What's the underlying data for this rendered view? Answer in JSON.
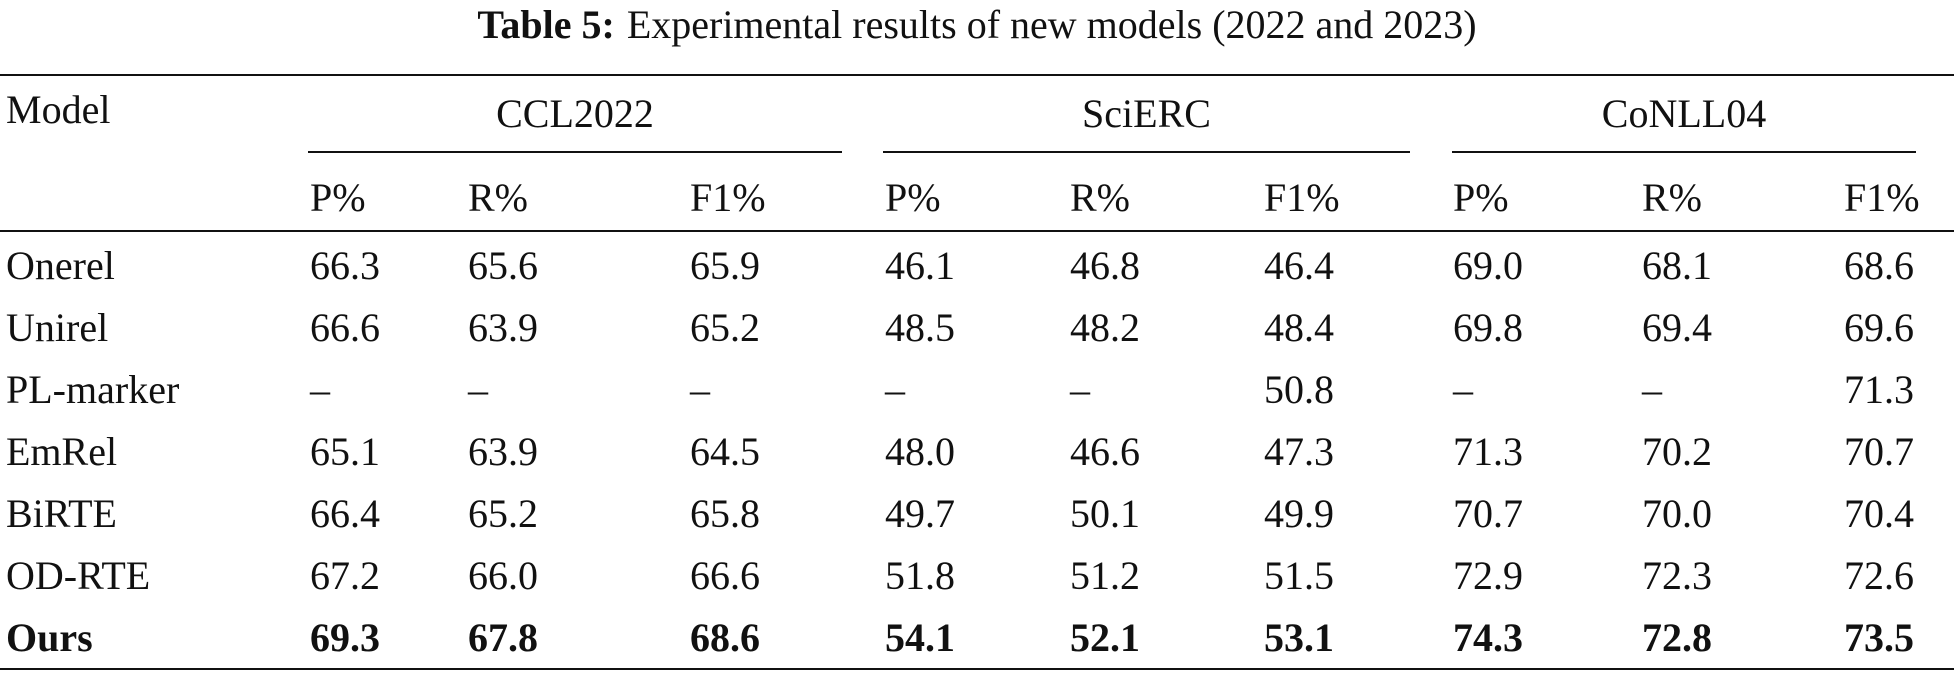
{
  "caption": {
    "label": "Table 5:",
    "text": "Experimental results of new models (2022 and 2023)"
  },
  "table": {
    "model_header": "Model",
    "groups": [
      {
        "name": "CCL2022",
        "metrics": [
          "P%",
          "R%",
          "F1%"
        ]
      },
      {
        "name": "SciERC",
        "metrics": [
          "P%",
          "R%",
          "F1%"
        ]
      },
      {
        "name": "CoNLL04",
        "metrics": [
          "P%",
          "R%",
          "F1%"
        ]
      }
    ],
    "rows": [
      {
        "model": "Onerel",
        "bold": false,
        "values": [
          "66.3",
          "65.6",
          "65.9",
          "46.1",
          "46.8",
          "46.4",
          "69.0",
          "68.1",
          "68.6"
        ]
      },
      {
        "model": "Unirel",
        "bold": false,
        "values": [
          "66.6",
          "63.9",
          "65.2",
          "48.5",
          "48.2",
          "48.4",
          "69.8",
          "69.4",
          "69.6"
        ]
      },
      {
        "model": "PL-marker",
        "bold": false,
        "values": [
          "–",
          "–",
          "–",
          "–",
          "–",
          "50.8",
          "–",
          "–",
          "71.3"
        ]
      },
      {
        "model": "EmRel",
        "bold": false,
        "values": [
          "65.1",
          "63.9",
          "64.5",
          "48.0",
          "46.6",
          "47.3",
          "71.3",
          "70.2",
          "70.7"
        ]
      },
      {
        "model": "BiRTE",
        "bold": false,
        "values": [
          "66.4",
          "65.2",
          "65.8",
          "49.7",
          "50.1",
          "49.9",
          "70.7",
          "70.0",
          "70.4"
        ]
      },
      {
        "model": "OD-RTE",
        "bold": false,
        "values": [
          "67.2",
          "66.0",
          "66.6",
          "51.8",
          "51.2",
          "51.5",
          "72.9",
          "72.3",
          "72.6"
        ]
      },
      {
        "model": "Ours",
        "bold": true,
        "values": [
          "69.3",
          "67.8",
          "68.6",
          "54.1",
          "52.1",
          "53.1",
          "74.3",
          "72.8",
          "73.5"
        ]
      }
    ]
  }
}
